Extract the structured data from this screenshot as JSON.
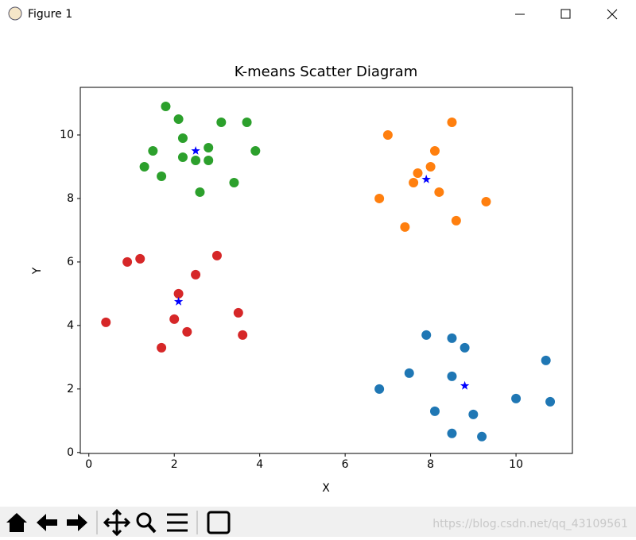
{
  "window": {
    "title": "Figure 1"
  },
  "watermark": "https://blog.csdn.net/qq_43109561",
  "chart_data": {
    "type": "scatter",
    "title": "K-means Scatter Diagram",
    "x_label": "X",
    "y_label": "Y",
    "xlim": [
      -0.2,
      11.32
    ],
    "ylim": [
      -0.03,
      11.5
    ],
    "xticks": [
      0,
      2,
      4,
      6,
      8,
      10
    ],
    "yticks": [
      0,
      2,
      4,
      6,
      8,
      10
    ],
    "series": [
      {
        "color": "#1f77b4",
        "marker": "circle",
        "x": [
          6.8,
          7.5,
          7.9,
          8.1,
          8.5,
          8.5,
          8.5,
          8.8,
          9.0,
          9.2,
          10.0,
          10.7,
          10.8
        ],
        "values": [
          2.0,
          2.5,
          3.7,
          1.3,
          3.6,
          2.4,
          0.6,
          3.3,
          1.2,
          0.5,
          1.7,
          2.9,
          1.6
        ]
      },
      {
        "color": "#ff7f0e",
        "marker": "circle",
        "x": [
          7.0,
          8.5,
          8.1,
          8.0,
          7.7,
          7.6,
          8.2,
          6.8,
          9.3,
          8.6,
          7.4
        ],
        "values": [
          10.0,
          10.4,
          9.5,
          9.0,
          8.8,
          8.5,
          8.2,
          8.0,
          7.9,
          7.3,
          7.1
        ]
      },
      {
        "color": "#2ca02c",
        "marker": "circle",
        "x": [
          1.8,
          2.1,
          3.1,
          3.7,
          2.2,
          1.5,
          2.8,
          3.9,
          2.2,
          2.5,
          2.8,
          1.3,
          1.7,
          3.4,
          2.6
        ],
        "values": [
          10.9,
          10.5,
          10.4,
          10.4,
          9.9,
          9.5,
          9.6,
          9.5,
          9.3,
          9.2,
          9.2,
          9.0,
          8.7,
          8.5,
          8.2
        ]
      },
      {
        "color": "#d62728",
        "marker": "circle",
        "x": [
          0.9,
          1.2,
          3.0,
          2.5,
          2.1,
          0.4,
          2.0,
          3.5,
          2.3,
          3.6,
          1.7
        ],
        "values": [
          6.0,
          6.1,
          6.2,
          5.6,
          5.0,
          4.1,
          4.2,
          4.4,
          3.8,
          3.7,
          3.3
        ]
      },
      {
        "color": "#0000ff",
        "marker": "star",
        "x": [
          8.8,
          7.9,
          2.5,
          2.1
        ],
        "values": [
          2.1,
          8.6,
          9.5,
          4.75
        ]
      }
    ]
  }
}
